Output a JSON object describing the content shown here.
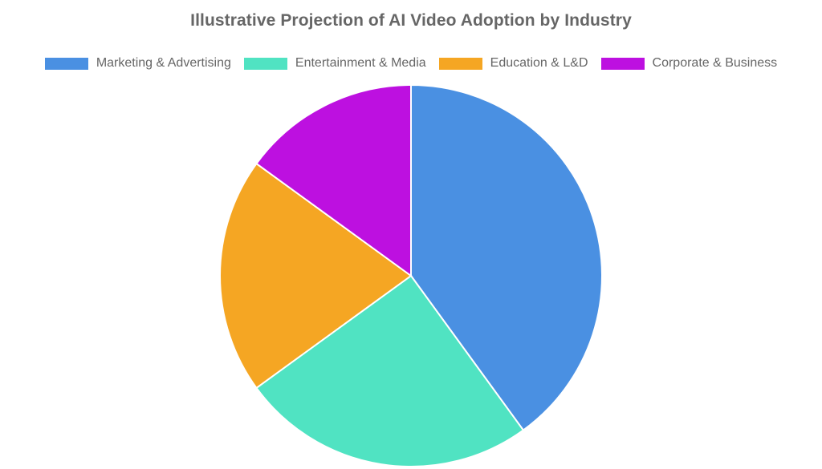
{
  "chart_data": {
    "type": "pie",
    "title": "Illustrative Projection of AI Video Adoption by Industry",
    "legend_position": "top",
    "categories": [
      "Marketing & Advertising",
      "Entertainment & Media",
      "Education & L&D",
      "Corporate & Business"
    ],
    "values": [
      40,
      25,
      20,
      15
    ],
    "colors": [
      "#4a90e2",
      "#50e3c2",
      "#f5a623",
      "#bd10e0"
    ]
  }
}
